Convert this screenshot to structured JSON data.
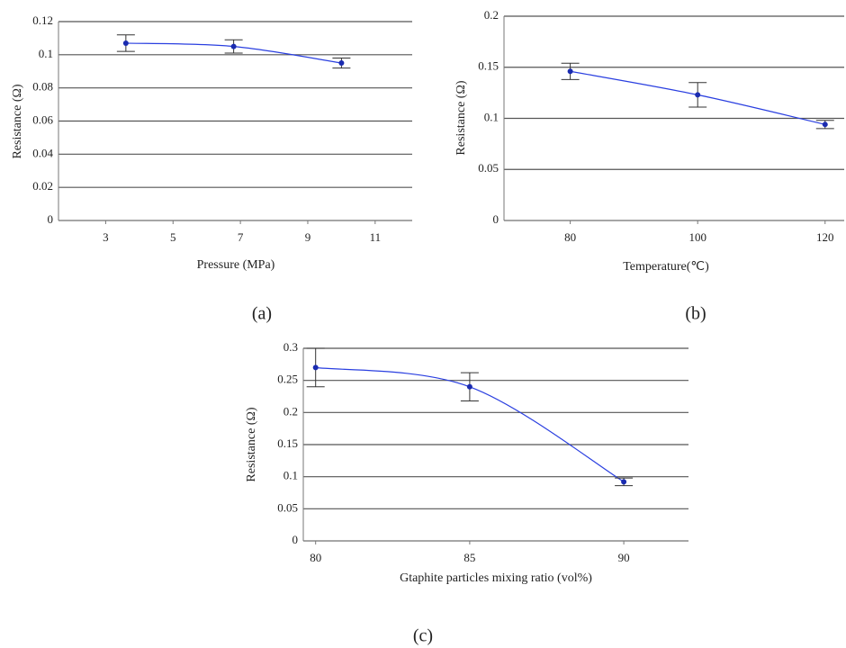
{
  "chart_data": [
    {
      "type": "line",
      "caption": "(a)",
      "xlabel": "Pressure (MPa)",
      "ylabel": "Resistance (Ω)",
      "x": [
        3.6,
        6.8,
        10
      ],
      "values": [
        0.107,
        0.105,
        0.095
      ],
      "errors": [
        0.005,
        0.004,
        0.003
      ],
      "color": "#2a3fe0",
      "xlim": [
        1.6,
        12.1
      ],
      "xticks": [
        3,
        5,
        7,
        9,
        11
      ],
      "ylim": [
        0,
        0.12
      ],
      "yticks": [
        0,
        0.02,
        0.04,
        0.06,
        0.08,
        0.1,
        0.12
      ],
      "grid": true
    },
    {
      "type": "line",
      "caption": "(b)",
      "xlabel": "Temperature(℃)",
      "ylabel": "Resistance (Ω)",
      "x": [
        80,
        100,
        120
      ],
      "values": [
        0.146,
        0.123,
        0.094
      ],
      "errors": [
        0.008,
        0.012,
        0.004
      ],
      "color": "#2a3fe0",
      "xlim": [
        69.6,
        123
      ],
      "xticks": [
        80,
        100,
        120
      ],
      "ylim": [
        0,
        0.2
      ],
      "yticks": [
        0,
        0.05,
        0.1,
        0.15,
        0.2
      ],
      "grid": true
    },
    {
      "type": "line",
      "caption": "(c)",
      "xlabel": "Gtaphite particles mixing ratio (vol%)",
      "ylabel": "Resistance (Ω)",
      "x": [
        80,
        85,
        90
      ],
      "values": [
        0.27,
        0.24,
        0.092
      ],
      "errors": [
        0.03,
        0.022,
        0.006
      ],
      "color": "#2a3fe0",
      "xlim": [
        79.6,
        92.1
      ],
      "xticks": [
        80,
        85,
        90
      ],
      "ylim": [
        0,
        0.3
      ],
      "yticks": [
        0,
        0.05,
        0.1,
        0.15,
        0.2,
        0.25,
        0.3
      ],
      "grid": true
    }
  ]
}
